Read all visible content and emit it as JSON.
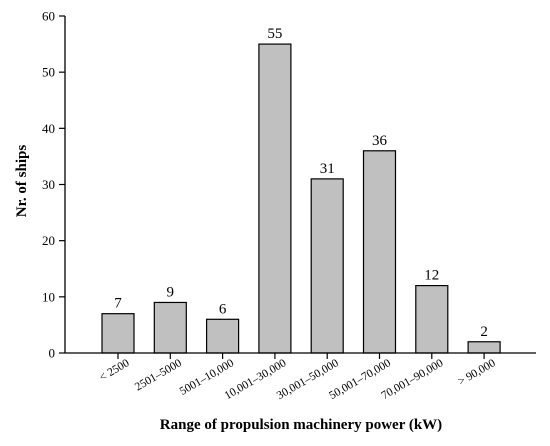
{
  "chart_data": {
    "type": "bar",
    "categories": [
      "< 2500",
      "2501–5000",
      "5001–10,000",
      "10,001–30,000",
      "30,001–50,000",
      "50,001–70,000",
      "70,001–90,000",
      "> 90,000"
    ],
    "values": [
      7,
      9,
      6,
      55,
      31,
      36,
      12,
      2
    ],
    "data_labels": [
      "7",
      "9",
      "6",
      "55",
      "31",
      "36",
      "12",
      "2"
    ],
    "xlabel": "Range of propulsion machinery power (kW)",
    "ylabel": "Nr. of ships",
    "ylim": [
      0,
      60
    ],
    "yticks": [
      0,
      10,
      20,
      30,
      40,
      50,
      60
    ],
    "grid": false,
    "legend": "none",
    "bar_color": "#c0c0c0",
    "edge_color": "#000000"
  }
}
